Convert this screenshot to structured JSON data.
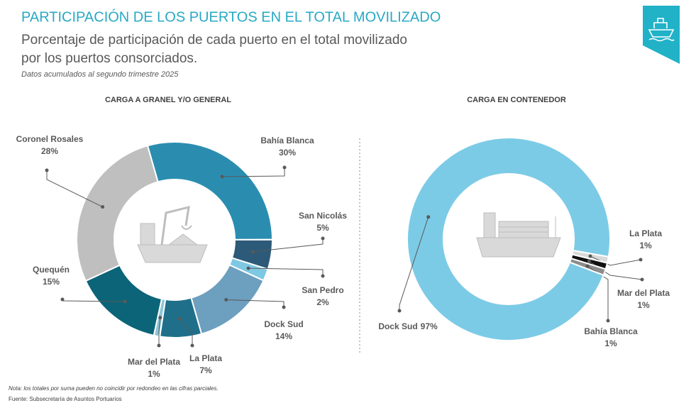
{
  "header": {
    "title": "PARTICIPACIÓN DE LOS PUERTOS EN EL TOTAL MOVILIZADO",
    "subtitle_line1": "Porcentaje de participación de cada puerto en el total movilizado",
    "subtitle_line2": "por los puertos consorciados.",
    "period": "Datos acumulados al segundo trimestre 2025"
  },
  "chart_data": [
    {
      "type": "pie",
      "title": "CARGA A GRANEL Y/O GENERAL",
      "categories": [
        "Bahía Blanca",
        "San Nicolás",
        "San Pedro",
        "Dock Sud",
        "La Plata",
        "Mar del Plata",
        "Quequén",
        "Coronel Rosales"
      ],
      "values": [
        30,
        5,
        2,
        14,
        7,
        1,
        15,
        28
      ],
      "value_labels": [
        "30%",
        "5%",
        "2%",
        "14%",
        "7%",
        "1%",
        "15%",
        "28%"
      ],
      "colors": [
        "#2a8db0",
        "#2d5a78",
        "#7ec8e3",
        "#6d9fbf",
        "#1f6f8b",
        "#8fc6d8",
        "#0c6478",
        "#bfbfbf"
      ]
    },
    {
      "type": "pie",
      "title": "CARGA EN CONTENEDOR",
      "categories": [
        "La Plata",
        "Mar del Plata",
        "Bahía Blanca",
        "Dock Sud"
      ],
      "values": [
        1,
        1,
        1,
        97
      ],
      "value_labels": [
        "1%",
        "1%",
        "1%",
        "97%"
      ],
      "colors": [
        "#d9d9d9",
        "#111111",
        "#8c8c8c",
        "#7ccbe6"
      ]
    }
  ],
  "footer": {
    "note": "Nota: los totales por suma pueden no coincidir por redondeo en las cifras parciales.",
    "source": "Fuente: Subsecretaría de Asuntos Portuarios"
  }
}
